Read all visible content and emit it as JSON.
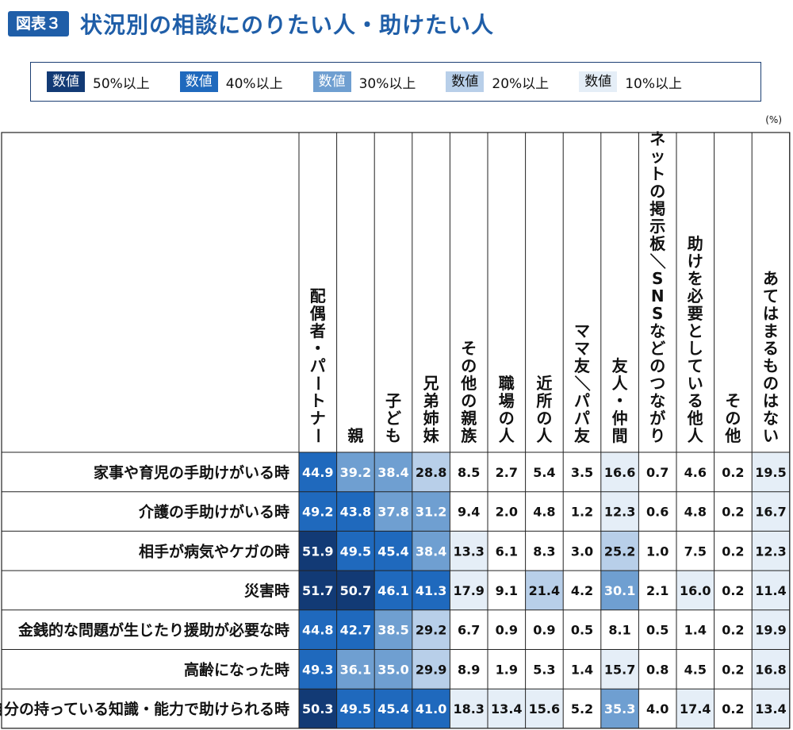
{
  "header": {
    "figure_label": "図表３",
    "title": "状況別の相談にのりたい人・助けたい人"
  },
  "legend": [
    {
      "chip": "数値",
      "label": "50%以上",
      "color": "#123a75",
      "text_color": "#ffffff"
    },
    {
      "chip": "数値",
      "label": "40%以上",
      "color": "#1f69bd",
      "text_color": "#ffffff"
    },
    {
      "chip": "数値",
      "label": "30%以上",
      "color": "#6f9fd1",
      "text_color": "#ffffff"
    },
    {
      "chip": "数値",
      "label": "20%以上",
      "color": "#b8cfe9",
      "text_color": "#111111"
    },
    {
      "chip": "数値",
      "label": "10%以上",
      "color": "#e5eef7",
      "text_color": "#111111"
    }
  ],
  "unit": "(%)",
  "chart_data": {
    "type": "table",
    "columns": [
      "配偶者・パートナー",
      "親",
      "子ども",
      "兄弟姉妹",
      "その他の親族",
      "職場の人",
      "近所の人",
      "ママ友／パパ友",
      "友人・仲間",
      "ネットの掲示板／SNSなどのつながり",
      "助けを必要としている他人",
      "その他",
      "あてはまるものはない"
    ],
    "rows": [
      {
        "label": "家事や育児の手助けがいる時",
        "values": [
          44.9,
          39.2,
          38.4,
          28.8,
          8.5,
          2.7,
          5.4,
          3.5,
          16.6,
          0.7,
          4.6,
          0.2,
          19.5
        ]
      },
      {
        "label": "介護の手助けがいる時",
        "values": [
          49.2,
          43.8,
          37.8,
          31.2,
          9.4,
          2.0,
          4.8,
          1.2,
          12.3,
          0.6,
          4.8,
          0.2,
          16.7
        ]
      },
      {
        "label": "相手が病気やケガの時",
        "values": [
          51.9,
          49.5,
          45.4,
          38.4,
          13.3,
          6.1,
          8.3,
          3.0,
          25.2,
          1.0,
          7.5,
          0.2,
          12.3
        ]
      },
      {
        "label": "災害時",
        "values": [
          51.7,
          50.7,
          46.1,
          41.3,
          17.9,
          9.1,
          21.4,
          4.2,
          30.1,
          2.1,
          16.0,
          0.2,
          11.4
        ]
      },
      {
        "label": "金銭的な問題が生じたり援助が必要な時",
        "values": [
          44.8,
          42.7,
          38.5,
          29.2,
          6.7,
          0.9,
          0.9,
          0.5,
          8.1,
          0.5,
          1.4,
          0.2,
          19.9
        ]
      },
      {
        "label": "高齢になった時",
        "values": [
          49.3,
          36.1,
          35.0,
          29.9,
          8.9,
          1.9,
          5.3,
          1.4,
          15.7,
          0.8,
          4.5,
          0.2,
          16.8
        ]
      },
      {
        "label": "自分の持っている知識・能力で助けられる時",
        "values": [
          50.3,
          49.5,
          45.4,
          41.0,
          18.3,
          13.4,
          15.6,
          5.2,
          35.3,
          4.0,
          17.4,
          0.2,
          13.4
        ]
      }
    ]
  }
}
